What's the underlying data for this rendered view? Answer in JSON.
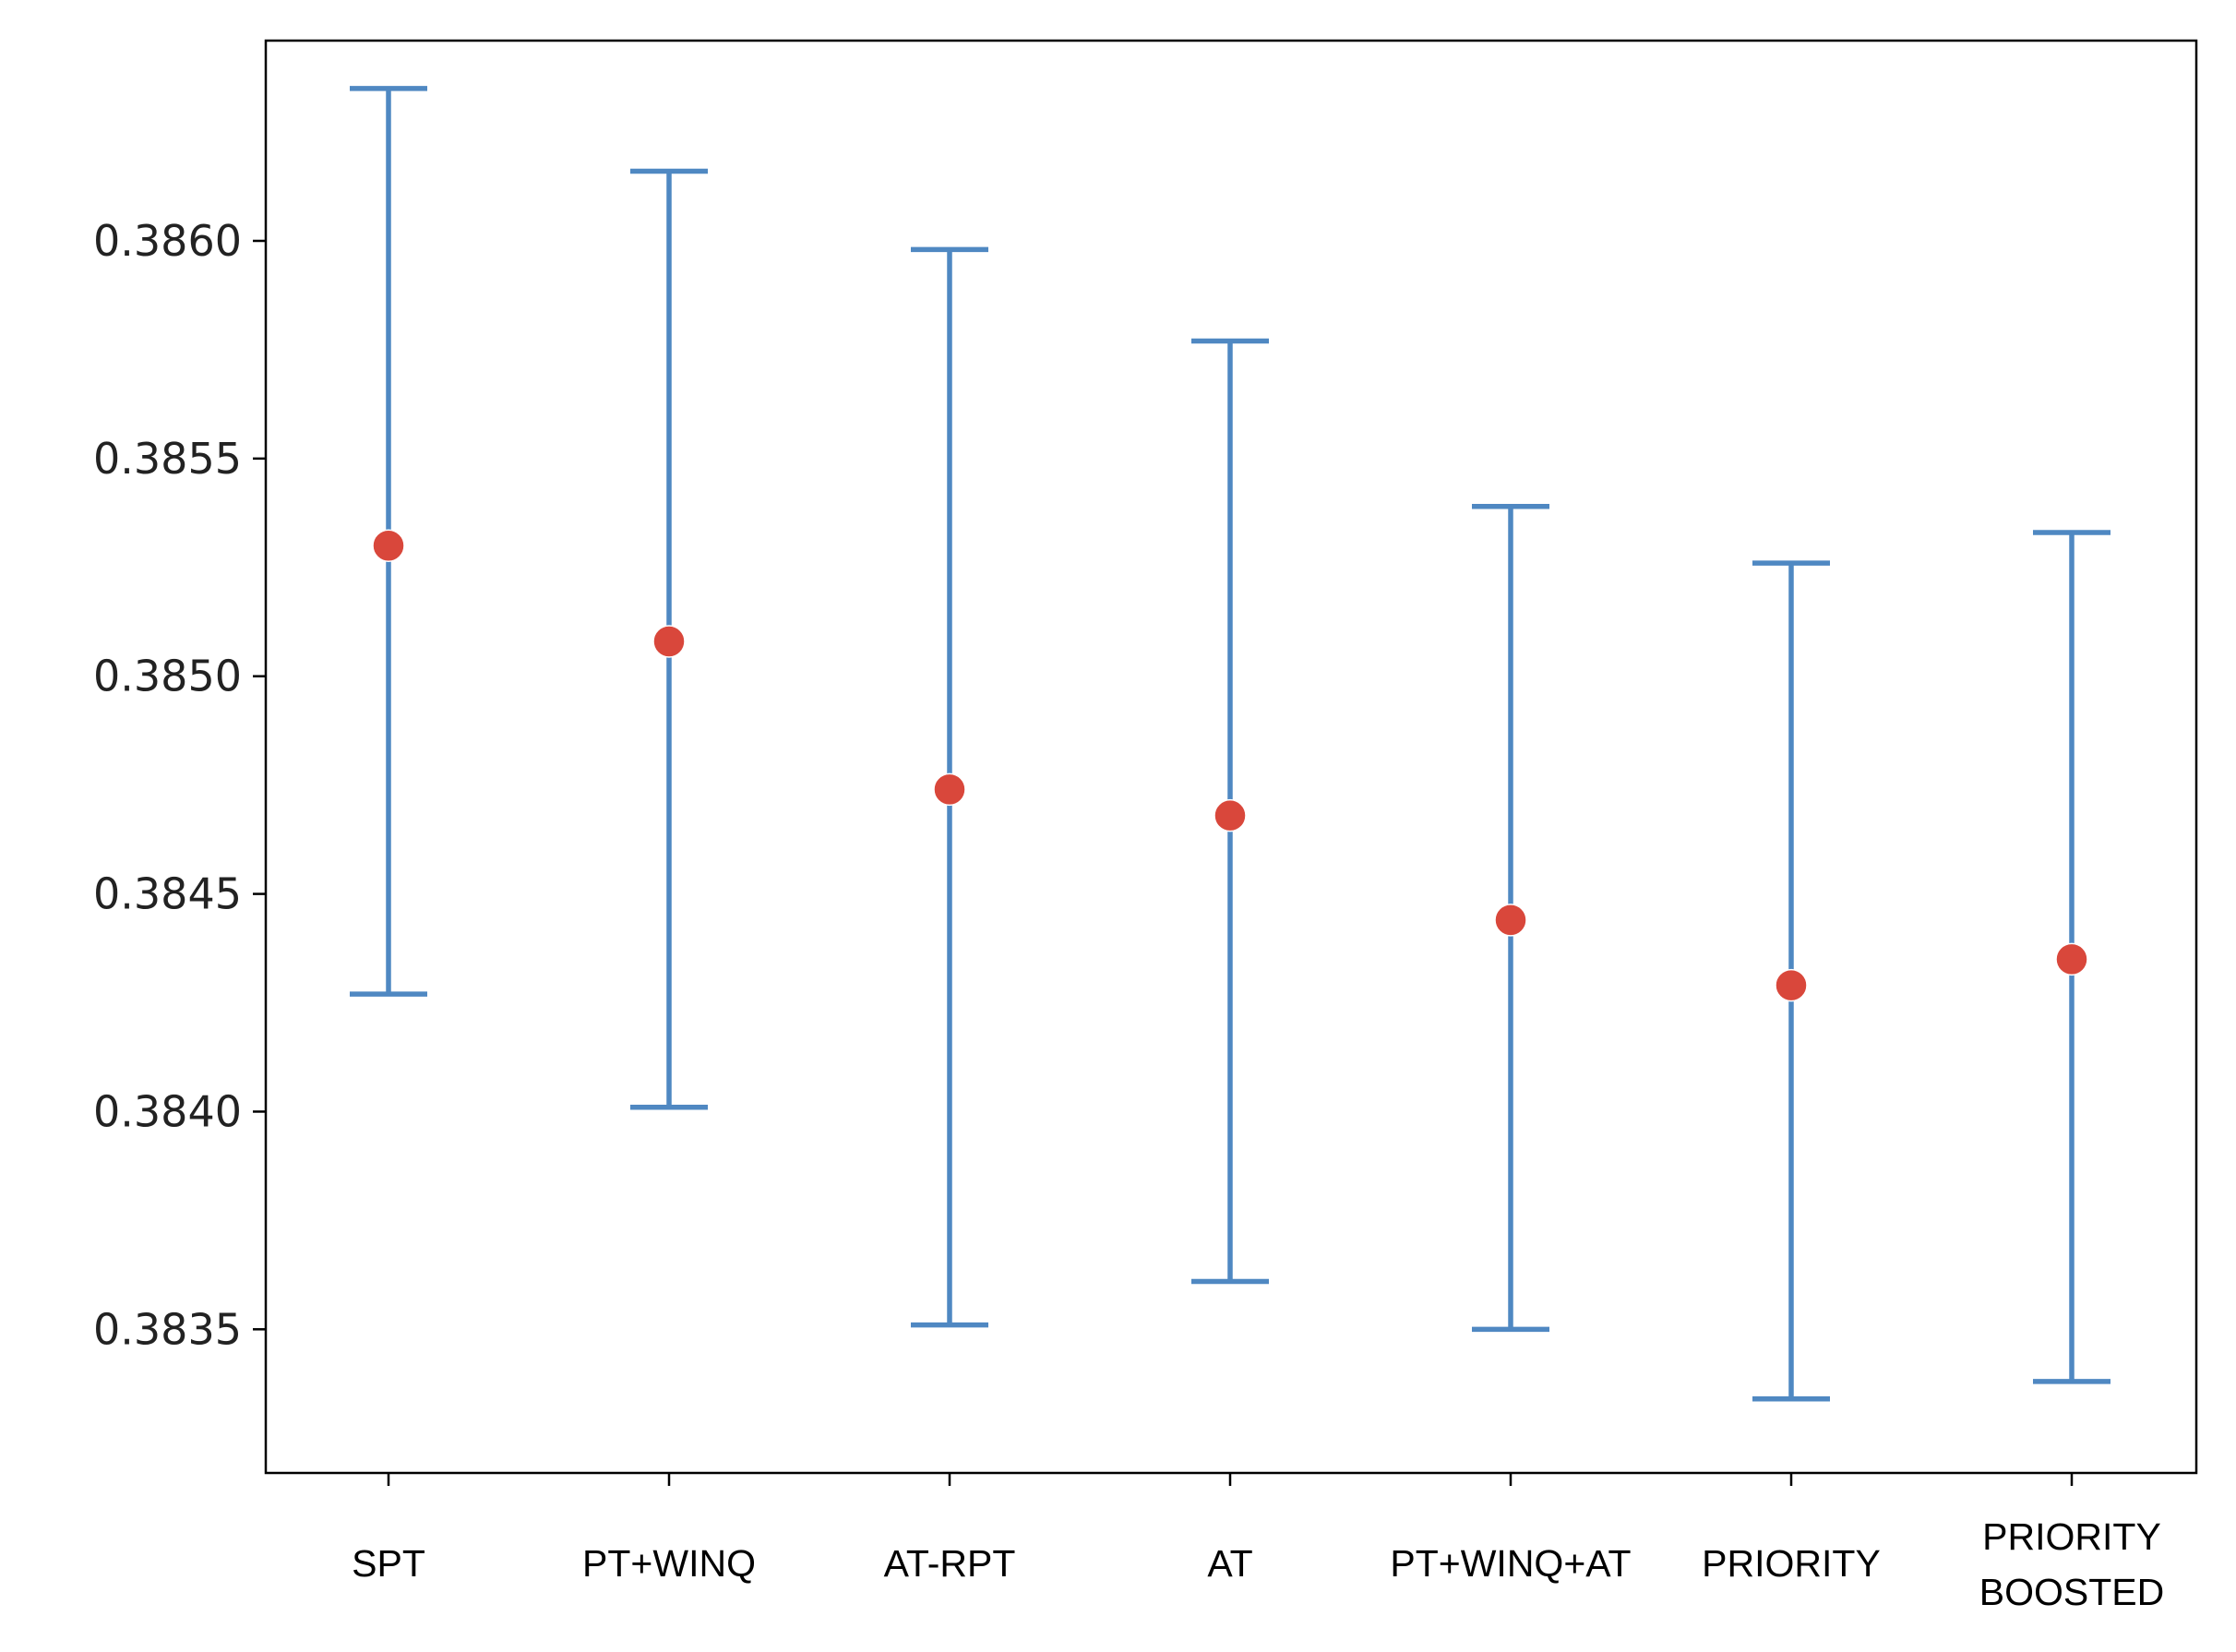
{
  "chart_data": {
    "type": "errorbar",
    "categories": [
      "SPT",
      "PT+WINQ",
      "AT-RPT",
      "AT",
      "PT+WINQ+AT",
      "PRIORITY",
      "PRIORITY\nBOOSTED"
    ],
    "series": [
      {
        "means": [
          0.3853,
          0.38508,
          0.38474,
          0.38468,
          0.38444,
          0.38429,
          0.38435
        ],
        "lower": [
          0.38427,
          0.38401,
          0.38351,
          0.38361,
          0.3835,
          0.38334,
          0.38338
        ],
        "upper": [
          0.38635,
          0.38616,
          0.38598,
          0.38577,
          0.38539,
          0.38526,
          0.38533
        ]
      }
    ],
    "ylim": [
      0.38317,
      0.38646
    ],
    "yticks": [
      "0.3835",
      "0.3840",
      "0.3845",
      "0.3850",
      "0.3855",
      "0.3860"
    ],
    "ytick_values": [
      0.3835,
      0.384,
      0.3845,
      0.385,
      0.3855,
      0.386
    ],
    "xlabel": "",
    "ylabel": "",
    "title": "",
    "grid": false,
    "colors": {
      "errorbar": "#4f88c2",
      "marker": "#d9473b",
      "axes": "#000000"
    }
  }
}
